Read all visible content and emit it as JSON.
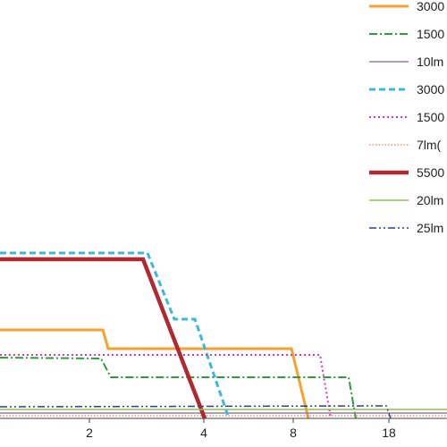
{
  "chart_data": {
    "type": "line",
    "x_tick_labels": [
      "2",
      "4",
      "8",
      "18"
    ],
    "legend_placement": "top-right",
    "grid": false,
    "series": [
      {
        "name": "3000",
        "color": "#F5A030",
        "dash": "solid",
        "width": 3,
        "points": [
          [
            0,
            369
          ],
          [
            115,
            369
          ],
          [
            121,
            390
          ],
          [
            326,
            390
          ],
          [
            345,
            468
          ]
        ]
      },
      {
        "name": "1500",
        "color": "#2E9C3C",
        "dash": "dashdot",
        "width": 2,
        "points": [
          [
            0,
            400
          ],
          [
            113,
            401
          ],
          [
            124,
            422
          ],
          [
            390,
            422
          ],
          [
            398,
            468
          ]
        ]
      },
      {
        "name": "10lm",
        "color": "#9A7A9E",
        "dash": "solid",
        "width": 1.5,
        "points": [
          [
            0,
            462
          ],
          [
            500,
            462
          ]
        ]
      },
      {
        "name": "3000",
        "color": "#3BB8DC",
        "dash": "dashed",
        "width": 3,
        "points": [
          [
            0,
            283
          ],
          [
            165,
            283
          ],
          [
            195,
            357
          ],
          [
            218,
            357
          ],
          [
            256,
            468
          ]
        ]
      },
      {
        "name": "1500",
        "color": "#D23CB4",
        "dash": "dotted",
        "width": 2,
        "points": [
          [
            0,
            397
          ],
          [
            358,
            397
          ],
          [
            370,
            468
          ]
        ]
      },
      {
        "name": "7lm(",
        "color": "#E05A3C",
        "dash": "dotted-fine",
        "width": 1,
        "points": [
          [
            0,
            465
          ],
          [
            500,
            465
          ]
        ]
      },
      {
        "name": "5500",
        "color": "#B02830",
        "dash": "solid",
        "width": 4.5,
        "points": [
          [
            0,
            290
          ],
          [
            160,
            290
          ],
          [
            229,
            468
          ]
        ]
      },
      {
        "name": "20lm",
        "color": "#8CC34A",
        "dash": "solid",
        "width": 1.5,
        "points": [
          [
            0,
            458
          ],
          [
            500,
            458
          ]
        ]
      },
      {
        "name": "25lm",
        "color": "#2C3E8C",
        "dash": "dashdotdot",
        "width": 1.5,
        "points": [
          [
            0,
            455
          ],
          [
            432,
            454
          ],
          [
            437,
            468
          ]
        ]
      }
    ]
  }
}
